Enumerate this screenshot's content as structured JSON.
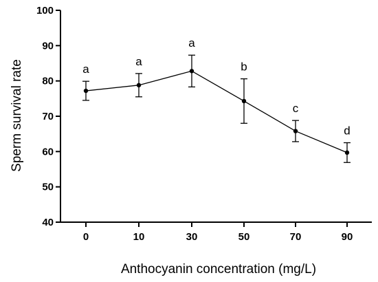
{
  "chart_data": {
    "type": "line",
    "xlabel": "Anthocyanin concentration (mg/L)",
    "ylabel": "Sperm survival rate",
    "ylim": [
      40,
      100
    ],
    "yticks": [
      40,
      50,
      60,
      70,
      80,
      90,
      100
    ],
    "categories": [
      "0",
      "10",
      "30",
      "50",
      "70",
      "90"
    ],
    "values": [
      77.2,
      78.8,
      82.8,
      74.3,
      65.8,
      59.7
    ],
    "errors": [
      2.7,
      3.3,
      4.5,
      6.3,
      3.0,
      2.8
    ],
    "significance_letters": [
      "a",
      "a",
      "a",
      "b",
      "c",
      "d"
    ],
    "grid": false,
    "legend": "none"
  }
}
